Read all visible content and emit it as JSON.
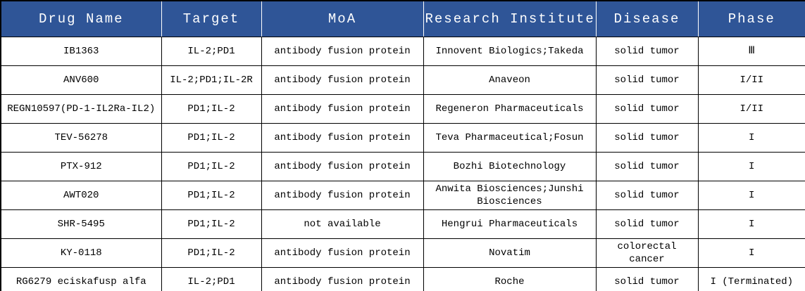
{
  "chart_data": {
    "type": "table",
    "columns": [
      "Drug Name",
      "Target",
      "MoA",
      "Research Institute",
      "Disease",
      "Phase"
    ],
    "rows": [
      [
        "IB1363",
        "IL-2;PD1",
        "antibody fusion protein",
        "Innovent Biologics;Takeda",
        "solid tumor",
        "Ⅲ"
      ],
      [
        "ANV600",
        "IL-2;PD1;IL-2R",
        "antibody fusion protein",
        "Anaveon",
        "solid tumor",
        "I/II"
      ],
      [
        "REGN10597(PD-1-IL2Ra-IL2)",
        "PD1;IL-2",
        "antibody fusion protein",
        "Regeneron Pharmaceuticals",
        "solid tumor",
        "I/II"
      ],
      [
        "TEV-56278",
        "PD1;IL-2",
        "antibody fusion protein",
        "Teva Pharmaceutical;Fosun",
        "solid tumor",
        "I"
      ],
      [
        "PTX-912",
        "PD1;IL-2",
        "antibody fusion protein",
        "Bozhi Biotechnology",
        "solid tumor",
        "I"
      ],
      [
        "AWT020",
        "PD1;IL-2",
        "antibody fusion protein",
        "Anwita Biosciences;Junshi Biosciences",
        "solid tumor",
        "I"
      ],
      [
        "SHR-5495",
        "PD1;IL-2",
        "not available",
        "Hengrui Pharmaceuticals",
        "solid tumor",
        "I"
      ],
      [
        "KY-0118",
        "PD1;IL-2",
        "antibody fusion protein",
        "Novatim",
        "colorectal cancer",
        "I"
      ],
      [
        "RG6279 eciskafusp alfa",
        "IL-2;PD1",
        "antibody fusion protein",
        "Roche",
        "solid tumor",
        "I (Terminated)"
      ]
    ]
  },
  "colors": {
    "header_bg": "#2F5597",
    "header_text": "#FFFFFF",
    "border": "#000000",
    "cell_text": "#000000",
    "footer_bar": "#1F3864",
    "row_bg": "#FFFFFF"
  }
}
